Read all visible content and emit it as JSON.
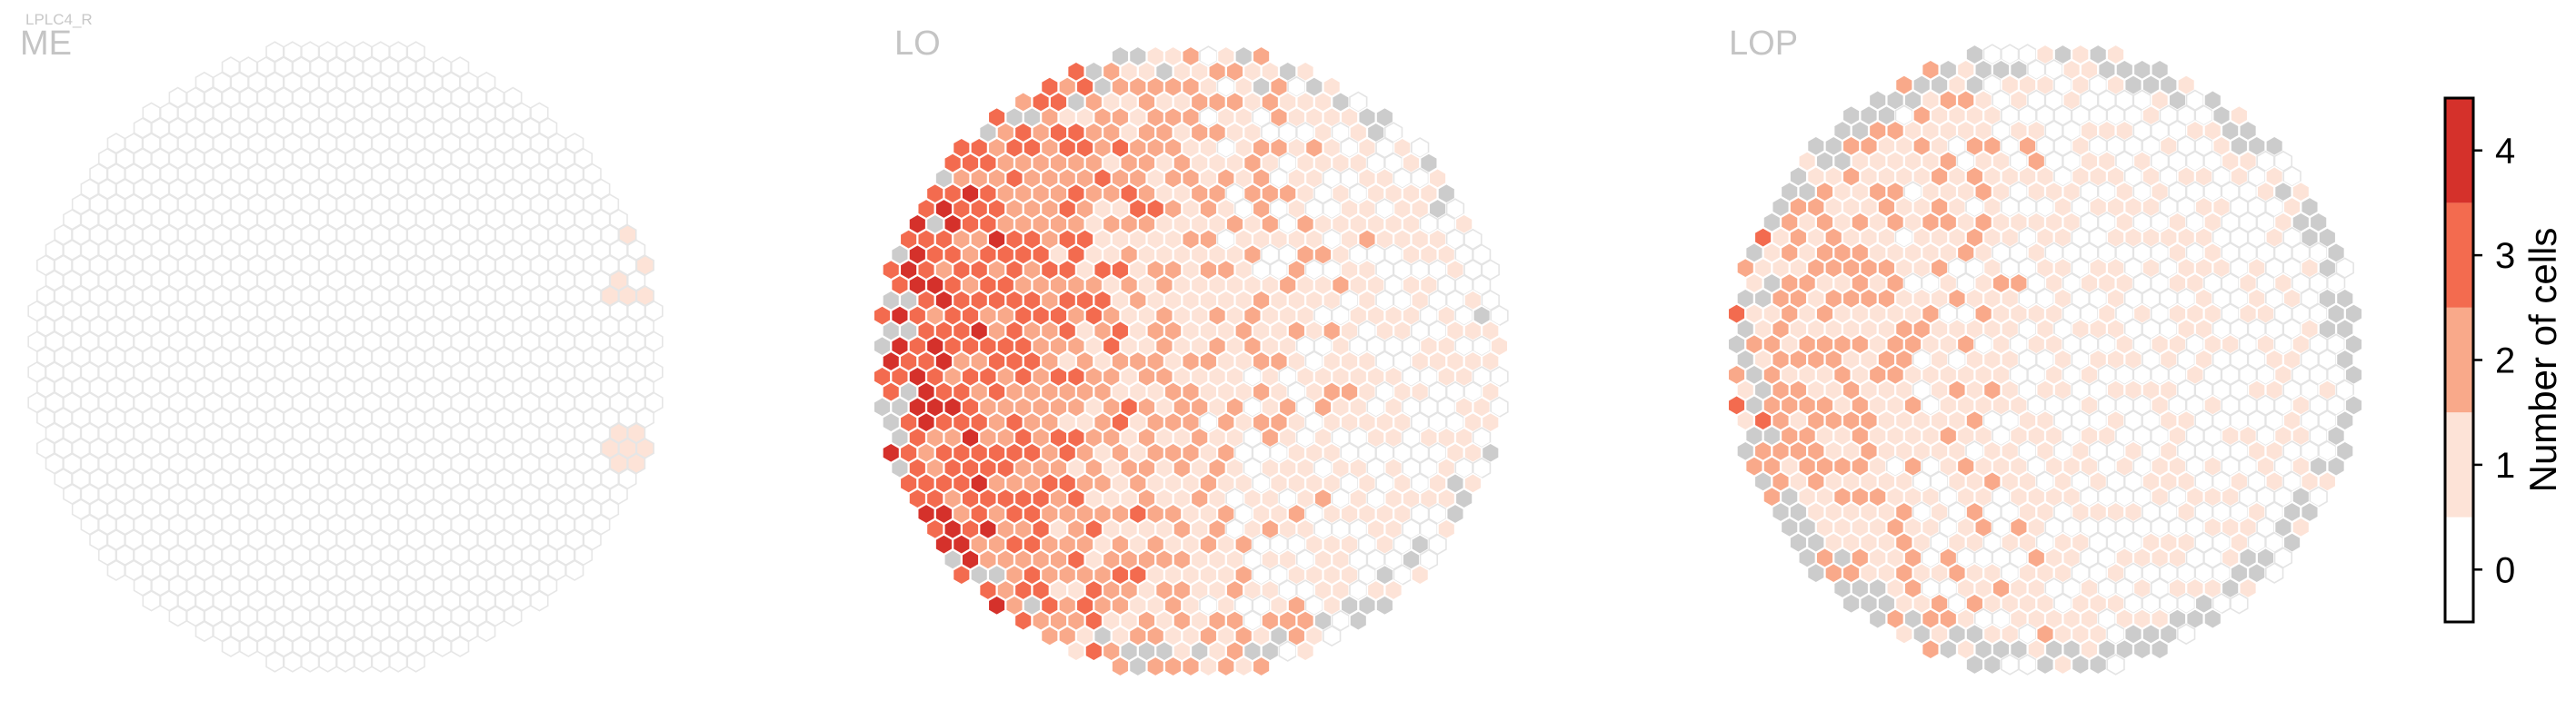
{
  "chart_data": {
    "type": "heatmap",
    "suptitle": "LPLC4_R",
    "panels": [
      {
        "title": "ME"
      },
      {
        "title": "LO"
      },
      {
        "title": "LOP"
      }
    ],
    "colorbar": {
      "label": "Number of cells",
      "ticks": [
        0,
        1,
        2,
        3,
        4
      ],
      "range": [
        -0.5,
        4.5
      ],
      "colors": [
        "#ffffff",
        "#fde3d7",
        "#f9a98a",
        "#f36b4f",
        "#d5312b"
      ]
    },
    "missing_color": "#cccccc",
    "edge_color": "#e4e4e4"
  }
}
